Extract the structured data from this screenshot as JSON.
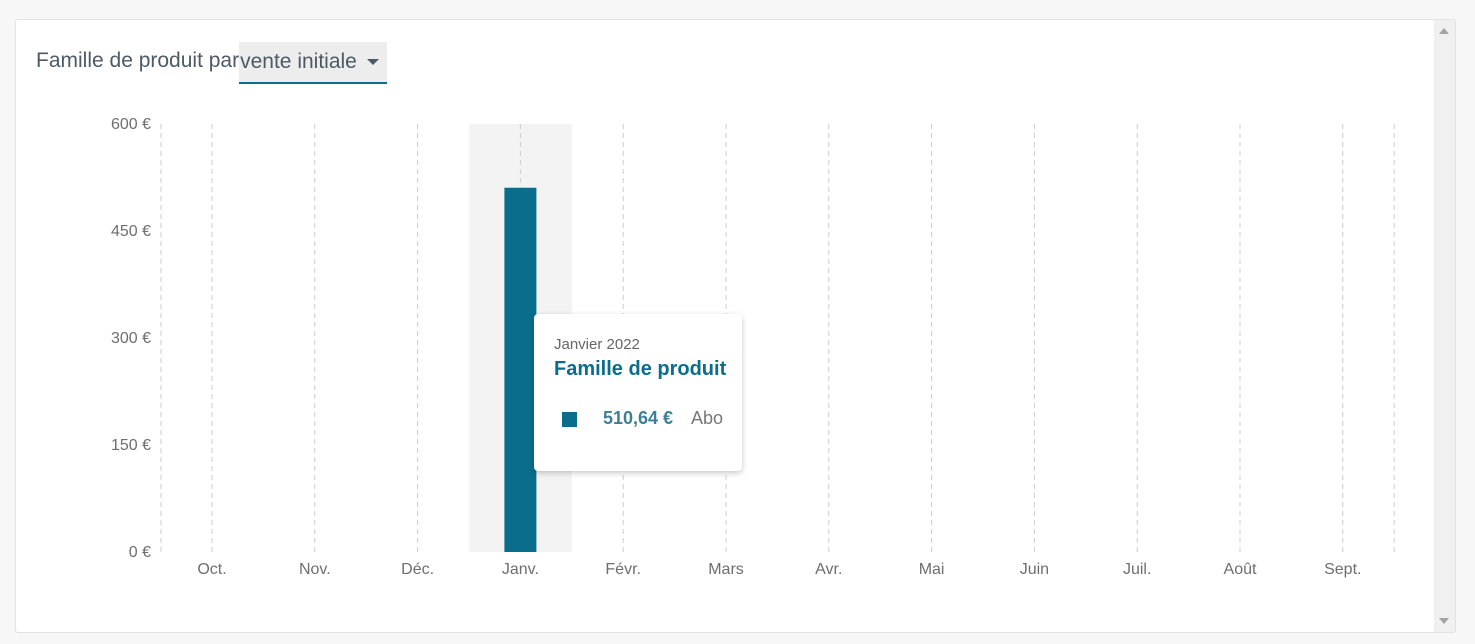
{
  "header": {
    "title_prefix": "Famille de produit par",
    "selector_value": "vente initiale"
  },
  "chart_data": {
    "type": "bar",
    "categories": [
      "Oct.",
      "Nov.",
      "Déc.",
      "Janv.",
      "Févr.",
      "Mars",
      "Avr.",
      "Mai",
      "Juin",
      "Juil.",
      "Août",
      "Sept."
    ],
    "series": [
      {
        "name": "Abo",
        "values": [
          0,
          0,
          0,
          510.64,
          0,
          0,
          0,
          0,
          0,
          0,
          0,
          0
        ],
        "color": "#0a6d8c"
      }
    ],
    "ylim": [
      0,
      600
    ],
    "yticks": [
      0,
      150,
      300,
      450,
      600
    ],
    "ytick_labels": [
      "0 €",
      "150 €",
      "300 €",
      "450 €",
      "600 €"
    ],
    "grid": "vertical dashed",
    "highlighted_category": "Janv."
  },
  "tooltip": {
    "date": "Janvier 2022",
    "title": "Famille de produit",
    "value": "510,64 €",
    "series": "Abo"
  },
  "colors": {
    "accent": "#0a6d8c",
    "highlight_band": "#f3f3f3",
    "grid": "#cccccc"
  }
}
